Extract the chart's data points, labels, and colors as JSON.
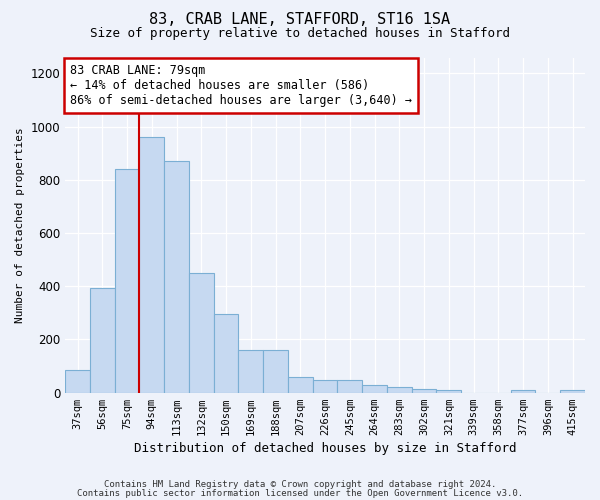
{
  "title1": "83, CRAB LANE, STAFFORD, ST16 1SA",
  "title2": "Size of property relative to detached houses in Stafford",
  "xlabel": "Distribution of detached houses by size in Stafford",
  "ylabel": "Number of detached properties",
  "categories": [
    "37sqm",
    "56sqm",
    "75sqm",
    "94sqm",
    "113sqm",
    "132sqm",
    "150sqm",
    "169sqm",
    "188sqm",
    "207sqm",
    "226sqm",
    "245sqm",
    "264sqm",
    "283sqm",
    "302sqm",
    "321sqm",
    "339sqm",
    "358sqm",
    "377sqm",
    "396sqm",
    "415sqm"
  ],
  "values": [
    85,
    395,
    840,
    960,
    870,
    450,
    295,
    160,
    160,
    60,
    48,
    48,
    30,
    20,
    15,
    10,
    0,
    0,
    10,
    0,
    10
  ],
  "bar_color": "#c6d9f1",
  "bar_edge_color": "#7bafd4",
  "marker_bar_index": 3,
  "marker_color": "#cc0000",
  "annotation_line1": "83 CRAB LANE: 79sqm",
  "annotation_line2": "← 14% of detached houses are smaller (586)",
  "annotation_line3": "86% of semi-detached houses are larger (3,640) →",
  "annotation_box_color": "#ffffff",
  "annotation_box_edge": "#cc0000",
  "ylim": [
    0,
    1260
  ],
  "yticks": [
    0,
    200,
    400,
    600,
    800,
    1000,
    1200
  ],
  "footer1": "Contains HM Land Registry data © Crown copyright and database right 2024.",
  "footer2": "Contains public sector information licensed under the Open Government Licence v3.0.",
  "bg_color": "#eef2fa",
  "plot_bg": "#eef2fa",
  "grid_color": "#ffffff",
  "title_fontsize": 11,
  "subtitle_fontsize": 9,
  "ylabel_fontsize": 8,
  "xlabel_fontsize": 9,
  "tick_fontsize": 7.5,
  "footer_fontsize": 6.5
}
